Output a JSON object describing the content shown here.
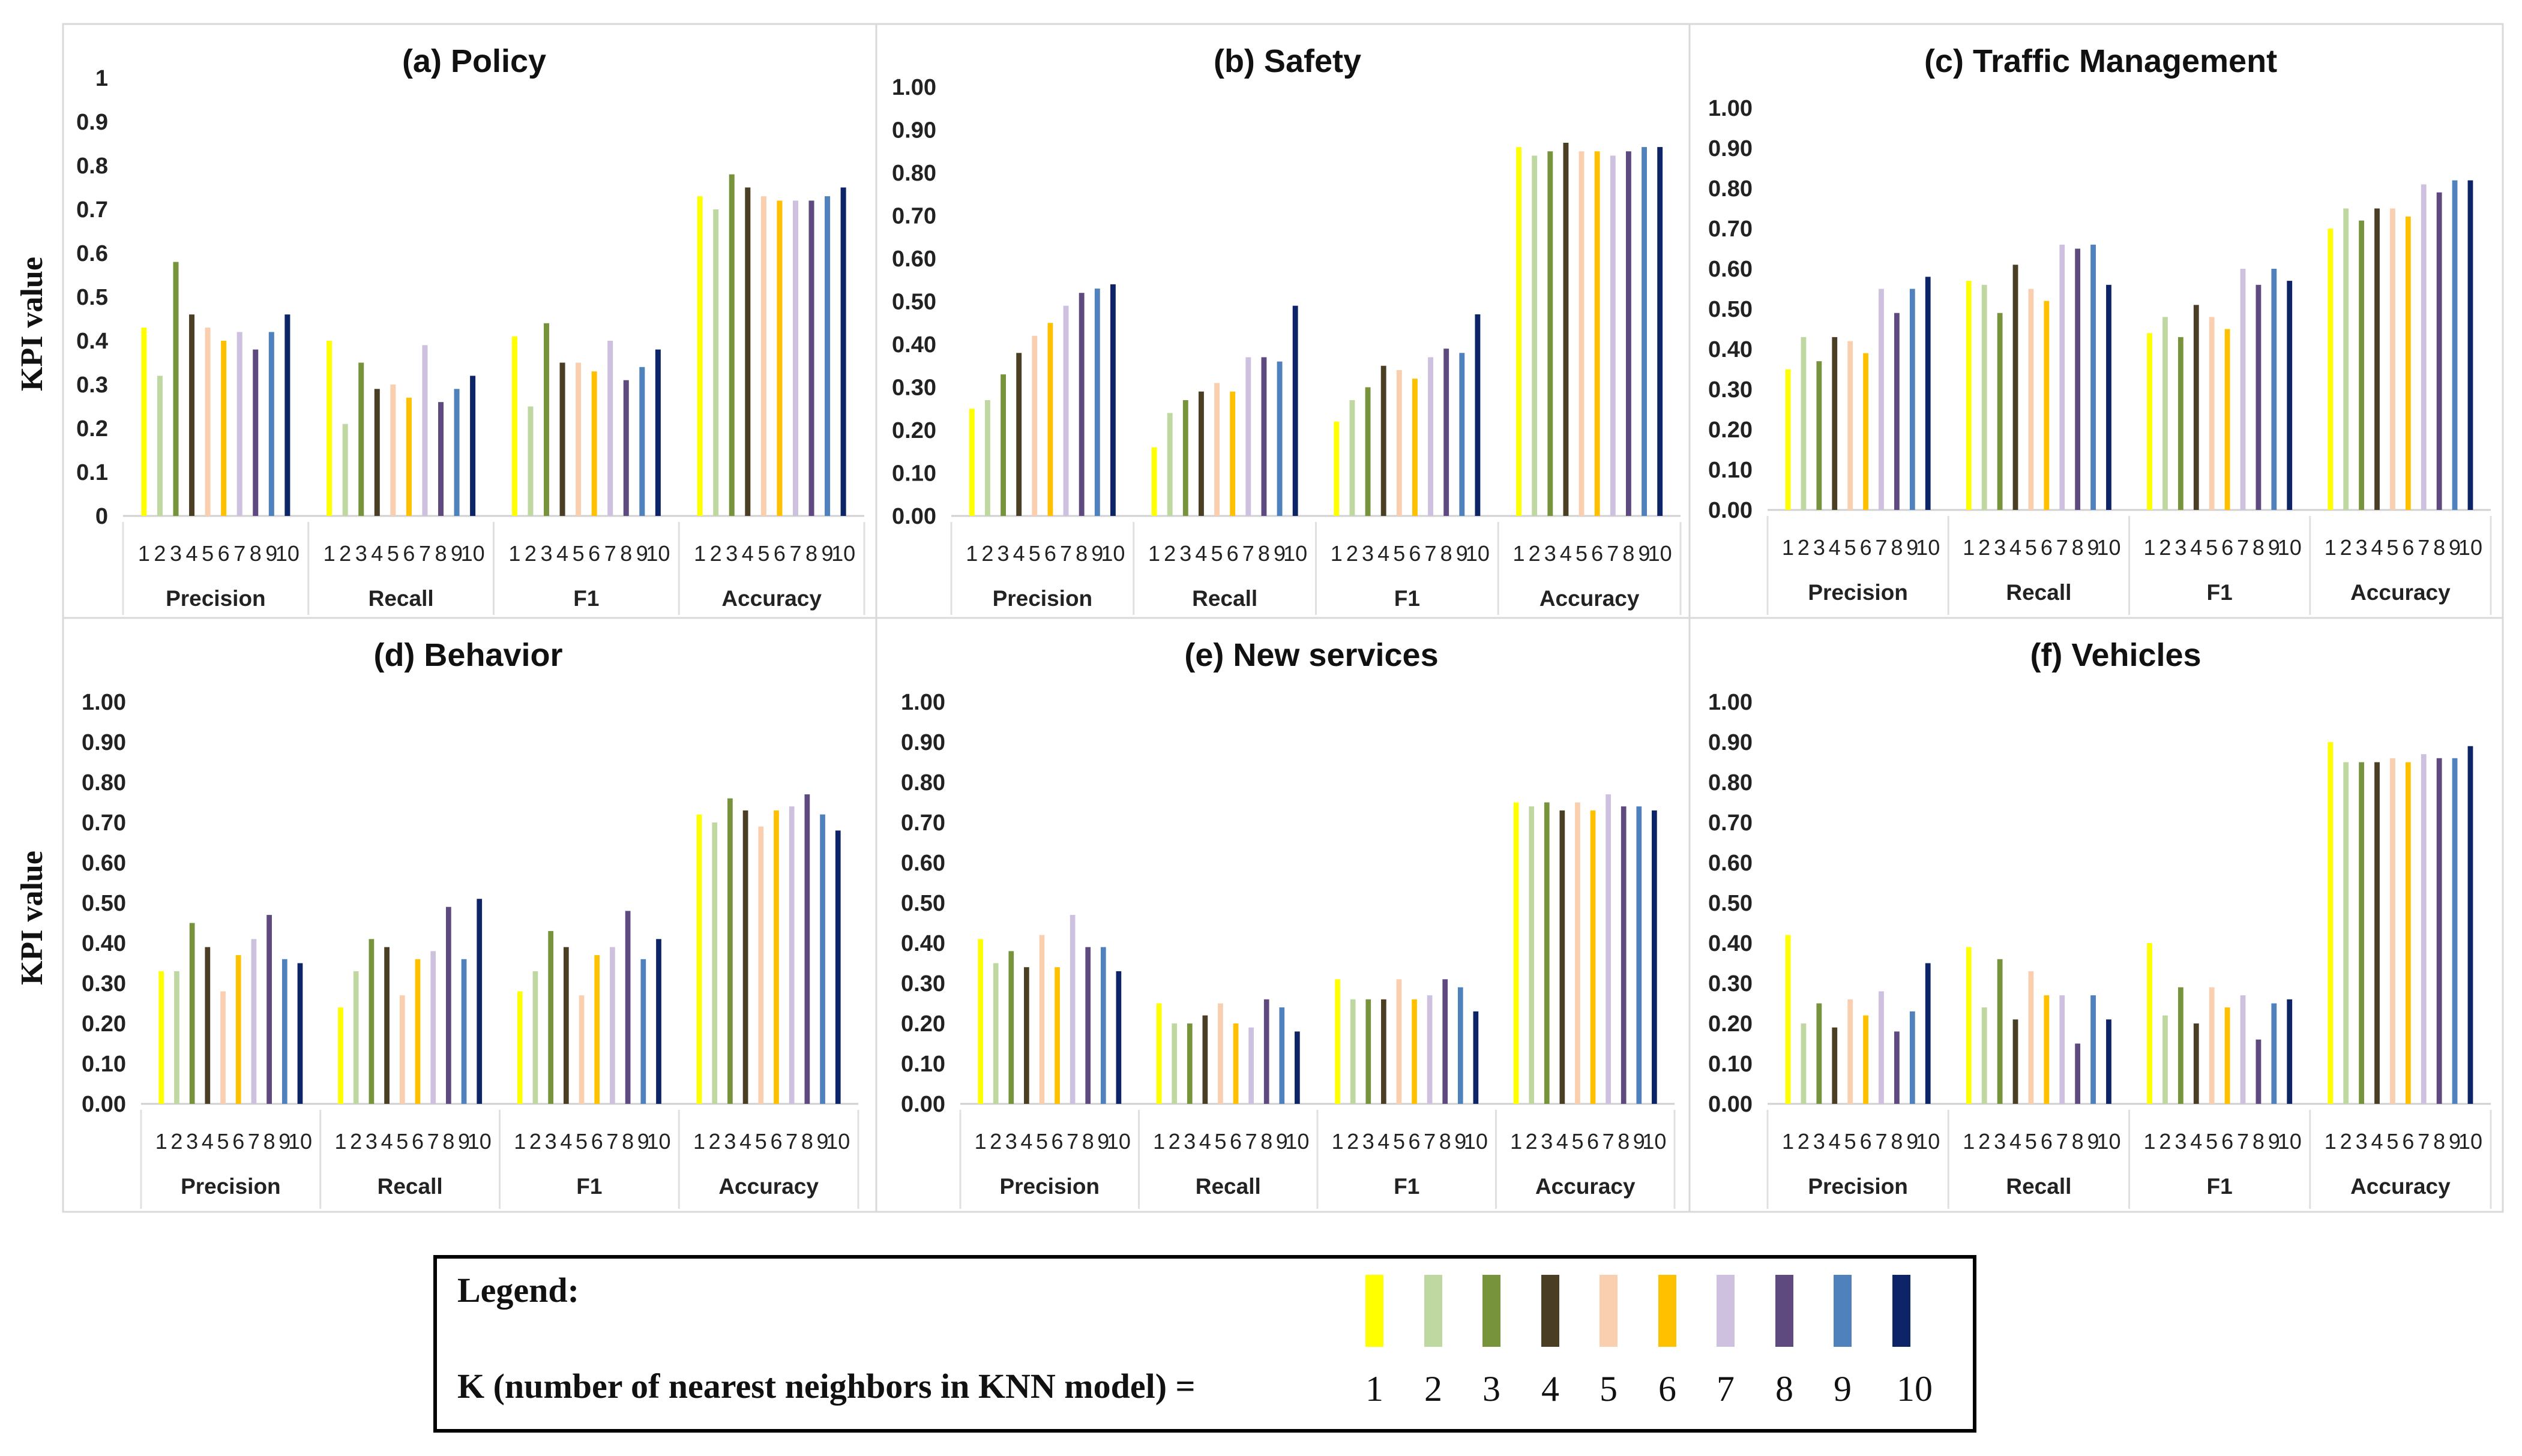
{
  "colors": [
    "#FFFF00",
    "#BFD8A2",
    "#77933C",
    "#4A3E24",
    "#F9CFB0",
    "#FFC000",
    "#CDC1DF",
    "#5E4A7E",
    "#4F81BD",
    "#0D2566"
  ],
  "categories": [
    "Precision",
    "Recall",
    "F1",
    "Accuracy"
  ],
  "k_labels": [
    "1",
    "2",
    "3",
    "4",
    "5",
    "6",
    "7",
    "8",
    "9",
    "10"
  ],
  "y_axis_label": "KPI value",
  "legend": {
    "title": "Legend:",
    "caption": "K (number of nearest neighbors in KNN model) =",
    "numbers": [
      "1",
      "2",
      "3",
      "4",
      "5",
      "6",
      "7",
      "8",
      "9",
      "10"
    ]
  },
  "chart_data": [
    {
      "type": "bar",
      "title": "(a) Policy",
      "categories": [
        "Precision",
        "Recall",
        "F1",
        "Accuracy"
      ],
      "ylim": [
        0,
        1
      ],
      "yticks": [
        "0",
        "0.1",
        "0.2",
        "0.3",
        "0.4",
        "0.5",
        "0.6",
        "0.7",
        "0.8",
        "0.9",
        "1"
      ],
      "series": [
        {
          "name": "K=1",
          "values": [
            0.43,
            0.4,
            0.41,
            0.73
          ]
        },
        {
          "name": "K=2",
          "values": [
            0.32,
            0.21,
            0.25,
            0.7
          ]
        },
        {
          "name": "K=3",
          "values": [
            0.58,
            0.35,
            0.44,
            0.78
          ]
        },
        {
          "name": "K=4",
          "values": [
            0.46,
            0.29,
            0.35,
            0.75
          ]
        },
        {
          "name": "K=5",
          "values": [
            0.43,
            0.3,
            0.35,
            0.73
          ]
        },
        {
          "name": "K=6",
          "values": [
            0.4,
            0.27,
            0.33,
            0.72
          ]
        },
        {
          "name": "K=7",
          "values": [
            0.42,
            0.39,
            0.4,
            0.72
          ]
        },
        {
          "name": "K=8",
          "values": [
            0.38,
            0.26,
            0.31,
            0.72
          ]
        },
        {
          "name": "K=9",
          "values": [
            0.42,
            0.29,
            0.34,
            0.73
          ]
        },
        {
          "name": "K=10",
          "values": [
            0.46,
            0.32,
            0.38,
            0.75
          ]
        }
      ]
    },
    {
      "type": "bar",
      "title": "(b) Safety",
      "categories": [
        "Precision",
        "Recall",
        "F1",
        "Accuracy"
      ],
      "ylim": [
        0,
        1
      ],
      "yticks": [
        "0.00",
        "0.10",
        "0.20",
        "0.30",
        "0.40",
        "0.50",
        "0.60",
        "0.70",
        "0.80",
        "0.90",
        "1.00"
      ],
      "series": [
        {
          "name": "K=1",
          "values": [
            0.25,
            0.16,
            0.22,
            0.86
          ]
        },
        {
          "name": "K=2",
          "values": [
            0.27,
            0.24,
            0.27,
            0.84
          ]
        },
        {
          "name": "K=3",
          "values": [
            0.33,
            0.27,
            0.3,
            0.85
          ]
        },
        {
          "name": "K=4",
          "values": [
            0.38,
            0.29,
            0.35,
            0.87
          ]
        },
        {
          "name": "K=5",
          "values": [
            0.42,
            0.31,
            0.34,
            0.85
          ]
        },
        {
          "name": "K=6",
          "values": [
            0.45,
            0.29,
            0.32,
            0.85
          ]
        },
        {
          "name": "K=7",
          "values": [
            0.49,
            0.37,
            0.37,
            0.84
          ]
        },
        {
          "name": "K=8",
          "values": [
            0.52,
            0.37,
            0.39,
            0.85
          ]
        },
        {
          "name": "K=9",
          "values": [
            0.53,
            0.36,
            0.38,
            0.86
          ]
        },
        {
          "name": "K=10",
          "values": [
            0.54,
            0.49,
            0.47,
            0.86
          ]
        }
      ]
    },
    {
      "type": "bar",
      "title": "(c) Traffic Management",
      "categories": [
        "Precision",
        "Recall",
        "F1",
        "Accuracy"
      ],
      "ylim": [
        0,
        1
      ],
      "yticks": [
        "0.00",
        "0.10",
        "0.20",
        "0.30",
        "0.40",
        "0.50",
        "0.60",
        "0.70",
        "0.80",
        "0.90",
        "1.00"
      ],
      "series": [
        {
          "name": "K=1",
          "values": [
            0.35,
            0.57,
            0.44,
            0.7
          ]
        },
        {
          "name": "K=2",
          "values": [
            0.43,
            0.56,
            0.48,
            0.75
          ]
        },
        {
          "name": "K=3",
          "values": [
            0.37,
            0.49,
            0.43,
            0.72
          ]
        },
        {
          "name": "K=4",
          "values": [
            0.43,
            0.61,
            0.51,
            0.75
          ]
        },
        {
          "name": "K=5",
          "values": [
            0.42,
            0.55,
            0.48,
            0.75
          ]
        },
        {
          "name": "K=6",
          "values": [
            0.39,
            0.52,
            0.45,
            0.73
          ]
        },
        {
          "name": "K=7",
          "values": [
            0.55,
            0.66,
            0.6,
            0.81
          ]
        },
        {
          "name": "K=8",
          "values": [
            0.49,
            0.65,
            0.56,
            0.79
          ]
        },
        {
          "name": "K=9",
          "values": [
            0.55,
            0.66,
            0.6,
            0.82
          ]
        },
        {
          "name": "K=10",
          "values": [
            0.58,
            0.56,
            0.57,
            0.82
          ]
        }
      ]
    },
    {
      "type": "bar",
      "title": "(d) Behavior",
      "categories": [
        "Precision",
        "Recall",
        "F1",
        "Accuracy"
      ],
      "ylim": [
        0,
        1
      ],
      "yticks": [
        "0.00",
        "0.10",
        "0.20",
        "0.30",
        "0.40",
        "0.50",
        "0.60",
        "0.70",
        "0.80",
        "0.90",
        "1.00"
      ],
      "series": [
        {
          "name": "K=1",
          "values": [
            0.33,
            0.24,
            0.28,
            0.72
          ]
        },
        {
          "name": "K=2",
          "values": [
            0.33,
            0.33,
            0.33,
            0.7
          ]
        },
        {
          "name": "K=3",
          "values": [
            0.45,
            0.41,
            0.43,
            0.76
          ]
        },
        {
          "name": "K=4",
          "values": [
            0.39,
            0.39,
            0.39,
            0.73
          ]
        },
        {
          "name": "K=5",
          "values": [
            0.28,
            0.27,
            0.27,
            0.69
          ]
        },
        {
          "name": "K=6",
          "values": [
            0.37,
            0.36,
            0.37,
            0.73
          ]
        },
        {
          "name": "K=7",
          "values": [
            0.41,
            0.38,
            0.39,
            0.74
          ]
        },
        {
          "name": "K=8",
          "values": [
            0.47,
            0.49,
            0.48,
            0.77
          ]
        },
        {
          "name": "K=9",
          "values": [
            0.36,
            0.36,
            0.36,
            0.72
          ]
        },
        {
          "name": "K=10",
          "values": [
            0.35,
            0.51,
            0.41,
            0.68
          ]
        }
      ]
    },
    {
      "type": "bar",
      "title": "(e) New services",
      "categories": [
        "Precision",
        "Recall",
        "F1",
        "Accuracy"
      ],
      "ylim": [
        0,
        1
      ],
      "yticks": [
        "0.00",
        "0.10",
        "0.20",
        "0.30",
        "0.40",
        "0.50",
        "0.60",
        "0.70",
        "0.80",
        "0.90",
        "1.00"
      ],
      "series": [
        {
          "name": "K=1",
          "values": [
            0.41,
            0.25,
            0.31,
            0.75
          ]
        },
        {
          "name": "K=2",
          "values": [
            0.35,
            0.2,
            0.26,
            0.74
          ]
        },
        {
          "name": "K=3",
          "values": [
            0.38,
            0.2,
            0.26,
            0.75
          ]
        },
        {
          "name": "K=4",
          "values": [
            0.34,
            0.22,
            0.26,
            0.73
          ]
        },
        {
          "name": "K=5",
          "values": [
            0.42,
            0.25,
            0.31,
            0.75
          ]
        },
        {
          "name": "K=6",
          "values": [
            0.34,
            0.2,
            0.26,
            0.73
          ]
        },
        {
          "name": "K=7",
          "values": [
            0.47,
            0.19,
            0.27,
            0.77
          ]
        },
        {
          "name": "K=8",
          "values": [
            0.39,
            0.26,
            0.31,
            0.74
          ]
        },
        {
          "name": "K=9",
          "values": [
            0.39,
            0.24,
            0.29,
            0.74
          ]
        },
        {
          "name": "K=10",
          "values": [
            0.33,
            0.18,
            0.23,
            0.73
          ]
        }
      ]
    },
    {
      "type": "bar",
      "title": "(f) Vehicles",
      "categories": [
        "Precision",
        "Recall",
        "F1",
        "Accuracy"
      ],
      "ylim": [
        0,
        1
      ],
      "yticks": [
        "0.00",
        "0.10",
        "0.20",
        "0.30",
        "0.40",
        "0.50",
        "0.60",
        "0.70",
        "0.80",
        "0.90",
        "1.00"
      ],
      "series": [
        {
          "name": "K=1",
          "values": [
            0.42,
            0.39,
            0.4,
            0.9
          ]
        },
        {
          "name": "K=2",
          "values": [
            0.2,
            0.24,
            0.22,
            0.85
          ]
        },
        {
          "name": "K=3",
          "values": [
            0.25,
            0.36,
            0.29,
            0.85
          ]
        },
        {
          "name": "K=4",
          "values": [
            0.19,
            0.21,
            0.2,
            0.85
          ]
        },
        {
          "name": "K=5",
          "values": [
            0.26,
            0.33,
            0.29,
            0.86
          ]
        },
        {
          "name": "K=6",
          "values": [
            0.22,
            0.27,
            0.24,
            0.85
          ]
        },
        {
          "name": "K=7",
          "values": [
            0.28,
            0.27,
            0.27,
            0.87
          ]
        },
        {
          "name": "K=8",
          "values": [
            0.18,
            0.15,
            0.16,
            0.86
          ]
        },
        {
          "name": "K=9",
          "values": [
            0.23,
            0.27,
            0.25,
            0.86
          ]
        },
        {
          "name": "K=10",
          "values": [
            0.35,
            0.21,
            0.26,
            0.89
          ]
        }
      ]
    }
  ]
}
